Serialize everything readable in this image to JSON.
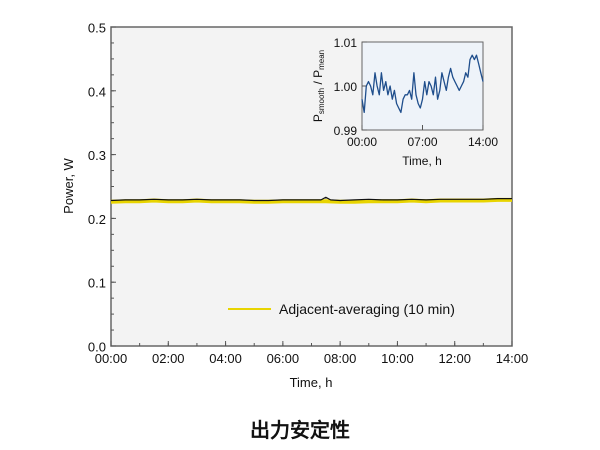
{
  "caption": "出力安定性",
  "chart_data": [
    {
      "type": "line",
      "title": "",
      "xlabel": "Time, h",
      "ylabel": "Power, W",
      "xlim": [
        "00:00",
        "14:00"
      ],
      "ylim": [
        0.0,
        0.5
      ],
      "x_ticks": [
        "00:00",
        "02:00",
        "04:00",
        "06:00",
        "08:00",
        "10:00",
        "12:00",
        "14:00"
      ],
      "y_ticks": [
        "0.0",
        "0.1",
        "0.2",
        "0.3",
        "0.4",
        "0.5"
      ],
      "grid": false,
      "legend_position": "bottom-right",
      "background": "#f3f3f3",
      "series": [
        {
          "name": "Adjacent-averaging (10 min)",
          "color": "#e8d400",
          "x": [
            "00:00",
            "00:30",
            "01:00",
            "01:30",
            "02:00",
            "02:30",
            "03:00",
            "03:30",
            "04:00",
            "04:30",
            "05:00",
            "05:30",
            "06:00",
            "06:30",
            "07:00",
            "07:30",
            "08:00",
            "08:30",
            "09:00",
            "09:30",
            "10:00",
            "10:30",
            "11:00",
            "11:30",
            "12:00",
            "12:30",
            "13:00",
            "13:30",
            "14:00"
          ],
          "y": [
            0.226,
            0.227,
            0.227,
            0.228,
            0.227,
            0.227,
            0.228,
            0.227,
            0.227,
            0.227,
            0.226,
            0.226,
            0.227,
            0.227,
            0.227,
            0.227,
            0.226,
            0.226,
            0.227,
            0.227,
            0.227,
            0.228,
            0.227,
            0.228,
            0.228,
            0.228,
            0.228,
            0.229,
            0.229
          ]
        },
        {
          "raw": true,
          "color": "#111111",
          "x": [
            "00:00",
            "00:30",
            "01:00",
            "01:30",
            "02:00",
            "02:30",
            "03:00",
            "03:30",
            "04:00",
            "04:30",
            "05:00",
            "05:30",
            "06:00",
            "06:30",
            "07:00",
            "07:20",
            "07:30",
            "07:40",
            "08:00",
            "08:30",
            "09:00",
            "09:30",
            "10:00",
            "10:30",
            "11:00",
            "11:30",
            "12:00",
            "12:30",
            "13:00",
            "13:30",
            "14:00"
          ],
          "y": [
            0.228,
            0.229,
            0.229,
            0.23,
            0.229,
            0.229,
            0.23,
            0.229,
            0.229,
            0.229,
            0.228,
            0.228,
            0.229,
            0.229,
            0.229,
            0.229,
            0.233,
            0.229,
            0.228,
            0.229,
            0.23,
            0.229,
            0.229,
            0.23,
            0.229,
            0.23,
            0.23,
            0.23,
            0.23,
            0.231,
            0.231
          ]
        }
      ]
    },
    {
      "type": "line",
      "title": "",
      "xlabel": "Time, h",
      "ylabel_main": "P",
      "ylabel_sub1": "smooth",
      "ylabel_mid": " / P",
      "ylabel_sub2": "mean",
      "xlim": [
        "00:00",
        "14:00"
      ],
      "ylim": [
        0.99,
        1.01
      ],
      "x_ticks": [
        "00:00",
        "07:00",
        "14:00"
      ],
      "y_ticks": [
        "0.99",
        "1.00",
        "1.01"
      ],
      "background": "#eef3f9",
      "series": [
        {
          "color": "#1f4e8c",
          "x": [
            "00:00",
            "00:15",
            "00:30",
            "00:45",
            "01:00",
            "01:15",
            "01:30",
            "01:45",
            "02:00",
            "02:15",
            "02:30",
            "02:45",
            "03:00",
            "03:15",
            "03:30",
            "03:45",
            "04:00",
            "04:15",
            "04:30",
            "04:45",
            "05:00",
            "05:15",
            "05:30",
            "05:45",
            "06:00",
            "06:15",
            "06:30",
            "06:45",
            "07:00",
            "07:15",
            "07:30",
            "07:45",
            "08:00",
            "08:15",
            "08:30",
            "08:45",
            "09:00",
            "09:15",
            "09:30",
            "09:45",
            "10:00",
            "10:15",
            "10:30",
            "10:45",
            "11:00",
            "11:15",
            "11:30",
            "11:45",
            "12:00",
            "12:15",
            "12:30",
            "12:45",
            "13:00",
            "13:15",
            "13:30",
            "13:45",
            "14:00"
          ],
          "y": [
            0.997,
            0.994,
            1.0,
            1.001,
            1.0,
            0.998,
            1.003,
            1.0,
            0.998,
            1.003,
            0.999,
            1.001,
            0.998,
            1.0,
            0.997,
            0.999,
            0.996,
            0.995,
            0.994,
            0.997,
            0.998,
            0.998,
            0.999,
            0.997,
            1.003,
            0.998,
            0.996,
            0.995,
            0.997,
            1.001,
            0.998,
            1.001,
            1.0,
            0.998,
            1.002,
            0.997,
            0.999,
            1.003,
            1.001,
            0.999,
            1.002,
            1.004,
            1.002,
            1.001,
            1.0,
            0.999,
            1.0,
            1.001,
            1.003,
            1.002,
            1.006,
            1.007,
            1.006,
            1.007,
            1.005,
            1.003,
            1.001
          ]
        }
      ]
    }
  ]
}
